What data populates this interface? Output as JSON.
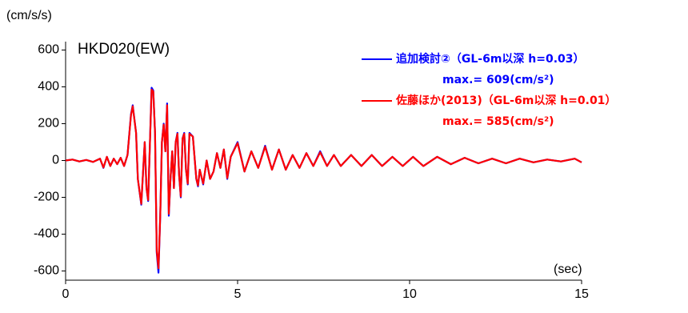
{
  "chart_data": {
    "type": "line",
    "title": "HKD020(EW)",
    "y_label": "(cm/s/s)",
    "x_label": "(sec)",
    "x": [
      0,
      0.2,
      0.4,
      0.6,
      0.8,
      1.0,
      1.1,
      1.2,
      1.3,
      1.4,
      1.5,
      1.6,
      1.7,
      1.8,
      1.9,
      1.95,
      2.05,
      2.1,
      2.2,
      2.3,
      2.35,
      2.4,
      2.5,
      2.55,
      2.6,
      2.65,
      2.7,
      2.75,
      2.8,
      2.85,
      2.9,
      2.95,
      3.0,
      3.05,
      3.1,
      3.15,
      3.2,
      3.25,
      3.3,
      3.35,
      3.4,
      3.45,
      3.5,
      3.55,
      3.6,
      3.7,
      3.8,
      3.85,
      3.9,
      4.0,
      4.1,
      4.2,
      4.3,
      4.4,
      4.5,
      4.6,
      4.7,
      4.8,
      5.0,
      5.2,
      5.4,
      5.6,
      5.8,
      6.0,
      6.2,
      6.4,
      6.6,
      6.8,
      7.0,
      7.2,
      7.4,
      7.6,
      7.8,
      8.0,
      8.3,
      8.6,
      8.9,
      9.2,
      9.5,
      9.8,
      10.1,
      10.4,
      10.8,
      11.2,
      11.6,
      12.0,
      12.4,
      12.8,
      13.2,
      13.6,
      14.0,
      14.4,
      14.8,
      15.0
    ],
    "series": [
      {
        "name": "追加検討②（GL-6m以深 h=0.03）",
        "max_label": "max.= 609(cm/s²)",
        "color": "#0000ff",
        "values": [
          0,
          5,
          -5,
          3,
          -8,
          10,
          -40,
          20,
          -30,
          10,
          -20,
          15,
          -30,
          30,
          250,
          300,
          150,
          -100,
          -240,
          100,
          -150,
          -220,
          395,
          380,
          150,
          -500,
          -609,
          -300,
          100,
          200,
          50,
          310,
          -300,
          -100,
          50,
          -150,
          100,
          150,
          -80,
          -200,
          120,
          150,
          -50,
          -130,
          150,
          130,
          -100,
          -140,
          -50,
          -130,
          0,
          -100,
          -60,
          40,
          -40,
          60,
          -100,
          20,
          100,
          -60,
          50,
          -40,
          80,
          -50,
          60,
          -50,
          30,
          -40,
          40,
          -30,
          50,
          -30,
          30,
          -30,
          30,
          -30,
          30,
          -30,
          20,
          -30,
          20,
          -30,
          20,
          -20,
          15,
          -15,
          10,
          -15,
          10,
          -10,
          5,
          -5,
          10,
          -10
        ]
      },
      {
        "name": "佐藤ほか(2013)（GL-6m以深 h=0.01）",
        "max_label": "max.= 585(cm/s²)",
        "color": "#ff0000",
        "values": [
          0,
          5,
          -5,
          3,
          -8,
          10,
          -38,
          20,
          -30,
          10,
          -20,
          15,
          -30,
          30,
          245,
          295,
          150,
          -100,
          -235,
          100,
          -150,
          -215,
          385,
          375,
          150,
          -490,
          -585,
          -300,
          100,
          195,
          50,
          300,
          -290,
          -100,
          50,
          -150,
          100,
          145,
          -80,
          -195,
          120,
          145,
          -50,
          -125,
          145,
          130,
          -100,
          -135,
          -50,
          -125,
          0,
          -100,
          -60,
          40,
          -40,
          60,
          -95,
          20,
          95,
          -60,
          50,
          -40,
          75,
          -50,
          60,
          -50,
          30,
          -40,
          40,
          -30,
          45,
          -30,
          30,
          -30,
          30,
          -30,
          30,
          -30,
          20,
          -30,
          20,
          -30,
          20,
          -20,
          15,
          -15,
          10,
          -15,
          10,
          -10,
          5,
          -5,
          10,
          -10
        ]
      }
    ],
    "xlim": [
      0,
      15
    ],
    "ylim": [
      -650,
      650
    ],
    "xticks": [
      0,
      5,
      10,
      15
    ],
    "yticks": [
      -600,
      -400,
      -200,
      0,
      200,
      400,
      600
    ]
  }
}
